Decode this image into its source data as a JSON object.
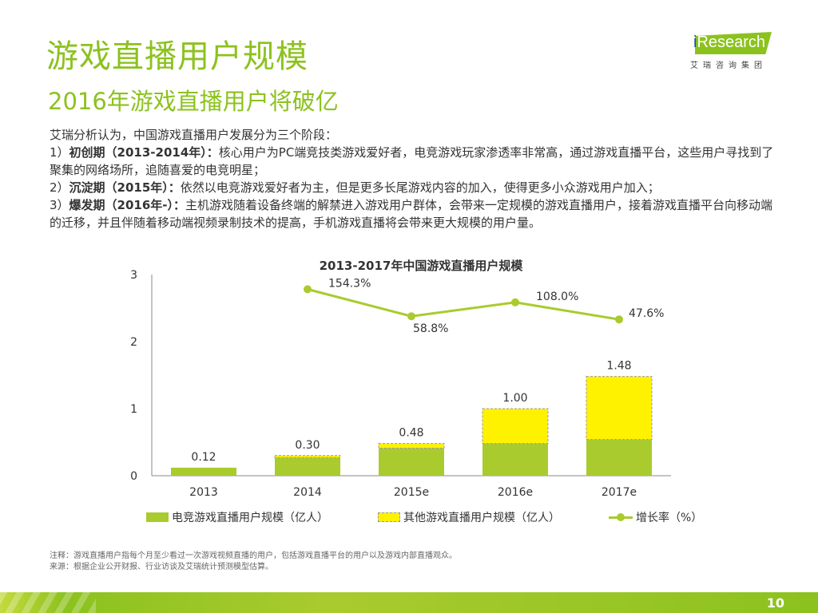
{
  "title": "游戏直播用户规模",
  "subtitle": "2016年游戏直播用户将破亿",
  "logo": {
    "brand": "iResearch",
    "cn": "艾瑞咨询集团"
  },
  "body": {
    "intro": "艾瑞分析认为，中国游戏直播用户发展分为三个阶段：",
    "stage1_prefix": "1）",
    "stage1_title": "初创期（2013-2014年）：",
    "stage1_text": "核心用户为PC端竞技类游戏爱好者，电竞游戏玩家渗透率非常高，通过游戏直播平台，这些用户寻找到了聚集的网络场所，追随喜爱的电竞明星；",
    "stage2_prefix": "2）",
    "stage2_title": "沉淀期（2015年）：",
    "stage2_text": "依然以电竞游戏爱好者为主，但是更多长尾游戏内容的加入，使得更多小众游戏用户加入；",
    "stage3_prefix": "3）",
    "stage3_title": "爆发期（2016年-）：",
    "stage3_text": "主机游戏随着设备终端的解禁进入游戏用户群体，会带来一定规模的游戏直播用户，接着游戏直播平台向移动端的迁移，并且伴随着移动端视频录制技术的提高，手机游戏直播将会带来更大规模的用户量。"
  },
  "chart_data": {
    "type": "bar",
    "stacked": true,
    "title": "2013-2017年中国游戏直播用户规模",
    "categories": [
      "2013",
      "2014",
      "2015e",
      "2016e",
      "2017e"
    ],
    "ylim": [
      0,
      3
    ],
    "yticks": [
      "0",
      "1",
      "2",
      "3"
    ],
    "series": [
      {
        "name": "电竞游戏直播用户规模（亿人）",
        "values": [
          0.12,
          0.27,
          0.41,
          0.48,
          0.54
        ],
        "color": "#a9cb2e"
      },
      {
        "name": "其他游戏直播用户规模（亿人）",
        "values": [
          0,
          0.03,
          0.07,
          0.52,
          0.94
        ],
        "color": "#fff200"
      }
    ],
    "totals": [
      "0.12",
      "0.30",
      "0.48",
      "1.00",
      "1.48"
    ],
    "line_series": {
      "name": "增长率（%）",
      "values": [
        null,
        154.3,
        58.8,
        108.0,
        47.6
      ],
      "labels": [
        "",
        "154.3%",
        "58.8%",
        "108.0%",
        "47.6%"
      ],
      "color": "#a9cb2e"
    },
    "grid": false,
    "legend": "bottom"
  },
  "notes": {
    "note": "注释：游戏直播用户指每个月至少看过一次游戏视频直播的用户，包括游戏直播平台的用户以及游戏内部直播观众。",
    "source": "来源：根据企业公开财报、行业访谈及艾瑞统计预测模型估算。"
  },
  "page_number": "10"
}
